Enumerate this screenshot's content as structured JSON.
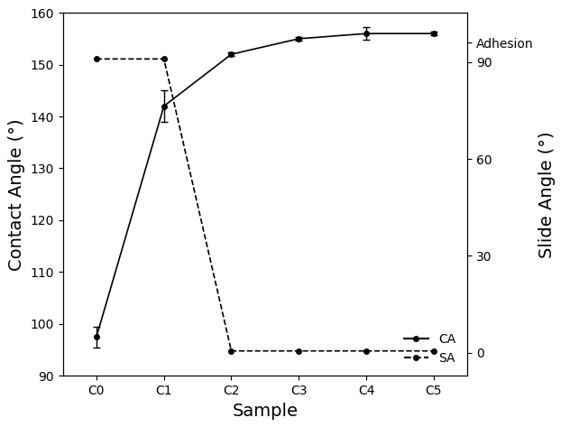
{
  "chart_data": {
    "type": "line",
    "x_label": "Sample",
    "y_label": "Contact Angle (°)",
    "y2_label": "Slide Angle (°)",
    "categories": [
      "C0",
      "C1",
      "C2",
      "C3",
      "C4",
      "C5"
    ],
    "series": [
      {
        "name": "CA",
        "color": "#000000",
        "marker": "o",
        "line_style": "solid",
        "values": [
          97.5,
          142,
          152,
          155,
          156,
          156
        ],
        "errors": [
          2,
          3,
          0.3,
          0.3,
          1.2,
          0.3
        ]
      },
      {
        "name": "SA",
        "color": "#000000",
        "marker": "o",
        "line_style": "dashed",
        "axis": "y2",
        "values": [
          91,
          91,
          0.5,
          0.5,
          0.5,
          0.5
        ]
      }
    ],
    "ylim": [
      90,
      160
    ],
    "yticks": [
      90,
      100,
      110,
      120,
      130,
      140,
      150,
      160
    ],
    "y2lim": [
      -7.2,
      105.3
    ],
    "y2ticks": [
      0,
      30,
      60,
      90,
      {
        "value": 96,
        "label": "Adhesion"
      }
    ],
    "legend": "lower right",
    "grid": false
  }
}
